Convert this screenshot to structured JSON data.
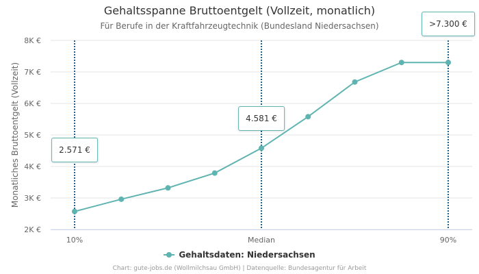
{
  "chart_data": {
    "type": "line",
    "title": "Gehaltsspanne Bruttoentgelt (Vollzeit, monatlich)",
    "subtitle": "Für Berufe in der Kraftfahrzeugtechnik (Bundesland Niedersachsen)",
    "ylabel": "Monatliches Bruttoentgelt (Vollzeit)",
    "xlabel": "",
    "ylim": [
      2000,
      8000
    ],
    "yticks": [
      {
        "value": 2000,
        "label": "2K €"
      },
      {
        "value": 3000,
        "label": "3K €"
      },
      {
        "value": 4000,
        "label": "4K €"
      },
      {
        "value": 5000,
        "label": "5K €"
      },
      {
        "value": 6000,
        "label": "6K €"
      },
      {
        "value": 7000,
        "label": "7K €"
      },
      {
        "value": 8000,
        "label": "8K €"
      }
    ],
    "x_range": [
      1,
      9
    ],
    "xticks": [
      {
        "x": 1,
        "label": "10%"
      },
      {
        "x": 5,
        "label": "Median"
      },
      {
        "x": 9,
        "label": "90%"
      }
    ],
    "series": [
      {
        "name": "Gehaltsdaten: Niedersachsen",
        "color": "#5fb3b0",
        "x": [
          1,
          2,
          3,
          4,
          5,
          6,
          7,
          8,
          9
        ],
        "values": [
          2571,
          2960,
          3320,
          3790,
          4581,
          5580,
          6680,
          7300,
          7300
        ]
      }
    ],
    "markers": [
      {
        "x": 1,
        "label": "2.571 €",
        "label_value": 4520
      },
      {
        "x": 5,
        "label": "4.581 €",
        "label_value": 5520
      },
      {
        "x": 9,
        "label": ">7.300 €",
        "label_value": 8520
      }
    ],
    "grid": true,
    "legend_position": "bottom-center",
    "credits": "Chart: gute-jobs.de (Wollmilchsau GmbH) | Datenquelle: Bundesagentur für Arbeit"
  }
}
